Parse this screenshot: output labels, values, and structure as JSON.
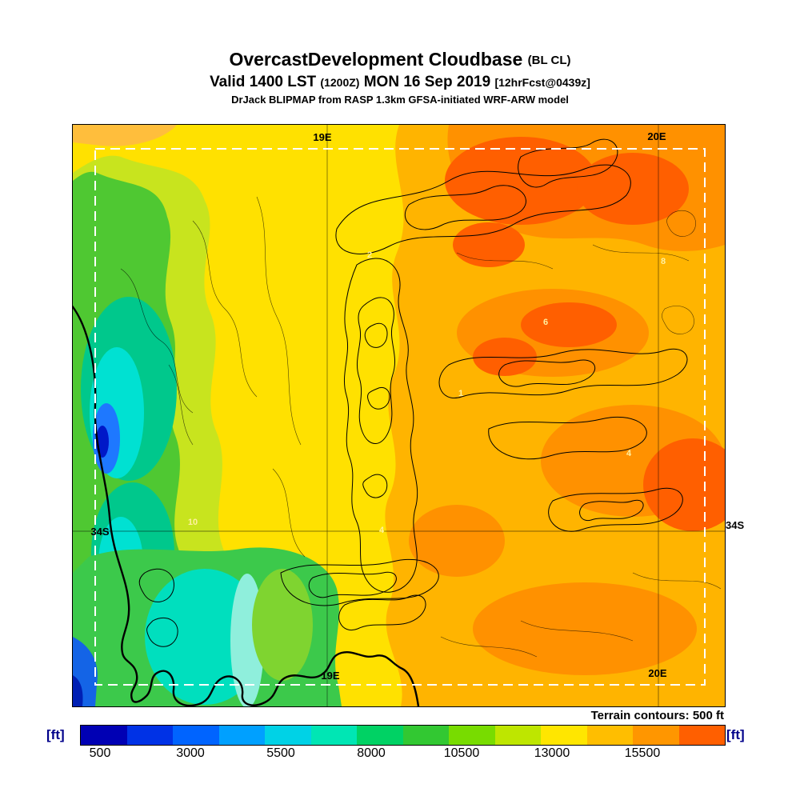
{
  "header": {
    "title": "OvercastDevelopment Cloudbase",
    "title_suffix": "(BL CL)",
    "valid": {
      "prefix": "Valid 1400 LST",
      "zulu": "(1200Z)",
      "date": "MON 16 Sep 2019",
      "fcst": "[12hrFcst@0439z]"
    },
    "model_line": "DrJack BLIPMAP from RASP 1.3km GFSA-initiated WRF-ARW model"
  },
  "map": {
    "grid_labels": {
      "top_19e": "19E",
      "top_20e": "20E",
      "bottom_19e": "19E",
      "bottom_20e": "20E",
      "left_34s": "34S",
      "right_34s": "34S"
    },
    "region_labels": [
      "2",
      "6",
      "8",
      "1",
      "4",
      "10",
      "4"
    ],
    "contour_note": "Terrain contours: 500 ft"
  },
  "colorbar": {
    "unit": "[ft]",
    "ticks": [
      "500",
      "3000",
      "5500",
      "8000",
      "10500",
      "13000",
      "15500"
    ],
    "colors": [
      "#0000B4",
      "#0032E6",
      "#0064FF",
      "#00A0FF",
      "#00D2E6",
      "#00E6B4",
      "#00D264",
      "#32C832",
      "#78DC00",
      "#BEE600",
      "#FFE600",
      "#FFBE00",
      "#FF9600",
      "#FF5F00"
    ]
  }
}
